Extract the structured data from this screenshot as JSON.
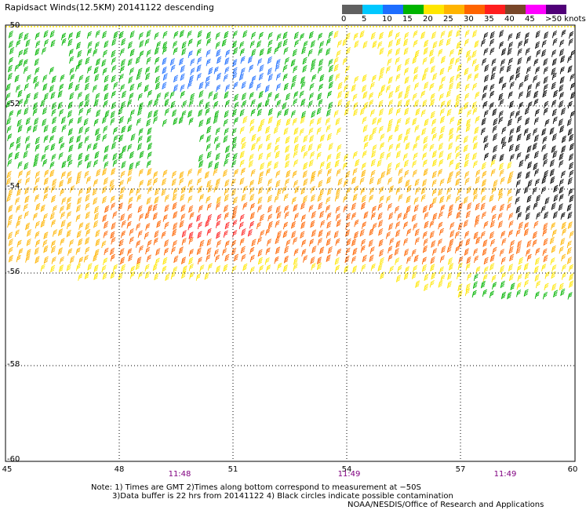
{
  "title": "Rapidsact Winds(12.5KM) 20141122 descending",
  "legend": {
    "labels": [
      "0",
      "5",
      "10",
      "15",
      "20",
      "25",
      "30",
      "35",
      "40",
      "45",
      ">50 knots"
    ],
    "colors": [
      "#606060",
      "#00c8ff",
      "#1e6eff",
      "#00b400",
      "#ffe600",
      "#ffb400",
      "#ff6400",
      "#ff1e1e",
      "#784628",
      "#ff00ff",
      "#500078"
    ]
  },
  "axes": {
    "lat_labels": [
      "-50",
      "-52",
      "-54",
      "-56",
      "-58",
      "-60"
    ],
    "lon_labels": [
      "45",
      "48",
      "51",
      "54",
      "57",
      "60"
    ]
  },
  "times": [
    "11:48",
    "11:49",
    "11:49"
  ],
  "notes": {
    "line1": "Note: 1) Times are GMT 2)Times along bottom correspond to measurement at −50S",
    "line2": "3)Data buffer is 22 hrs from 20141122 4) Black circles indicate possible contamination",
    "line3": "NOAA/NESDIS/Office of Research and Applications"
  },
  "colors": {
    "grid": "#000000",
    "highlight_line": "#ffe600"
  }
}
